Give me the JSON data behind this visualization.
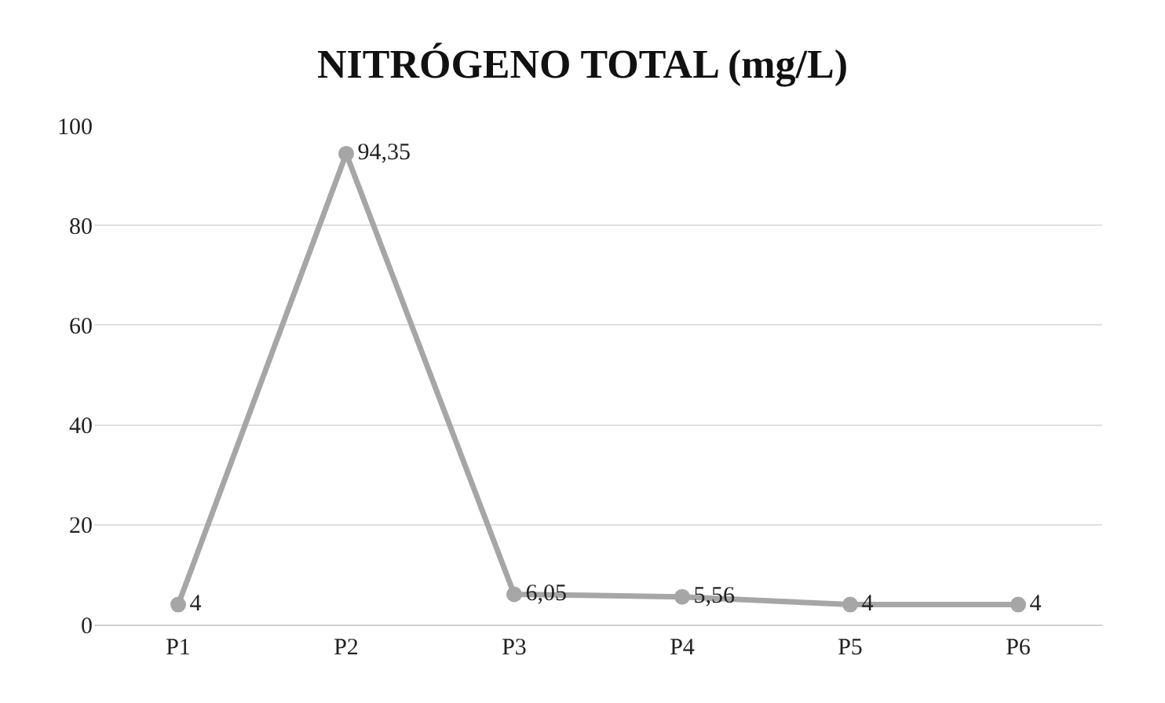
{
  "chart_data": {
    "type": "line",
    "title": "NITRÓGENO TOTAL (mg/L)",
    "categories": [
      "P1",
      "P2",
      "P3",
      "P4",
      "P5",
      "P6"
    ],
    "values": [
      4,
      94.35,
      6.05,
      5.56,
      4,
      4
    ],
    "value_labels": [
      "4",
      "94,35",
      "6,05",
      "5,56",
      "4",
      "4"
    ],
    "color": "#a6a6a6",
    "marker": "circle",
    "line_style": "solid",
    "ylim": [
      0,
      100
    ],
    "yticks": [
      0,
      20,
      40,
      60,
      80,
      100
    ],
    "grid": "y",
    "legend": false
  }
}
